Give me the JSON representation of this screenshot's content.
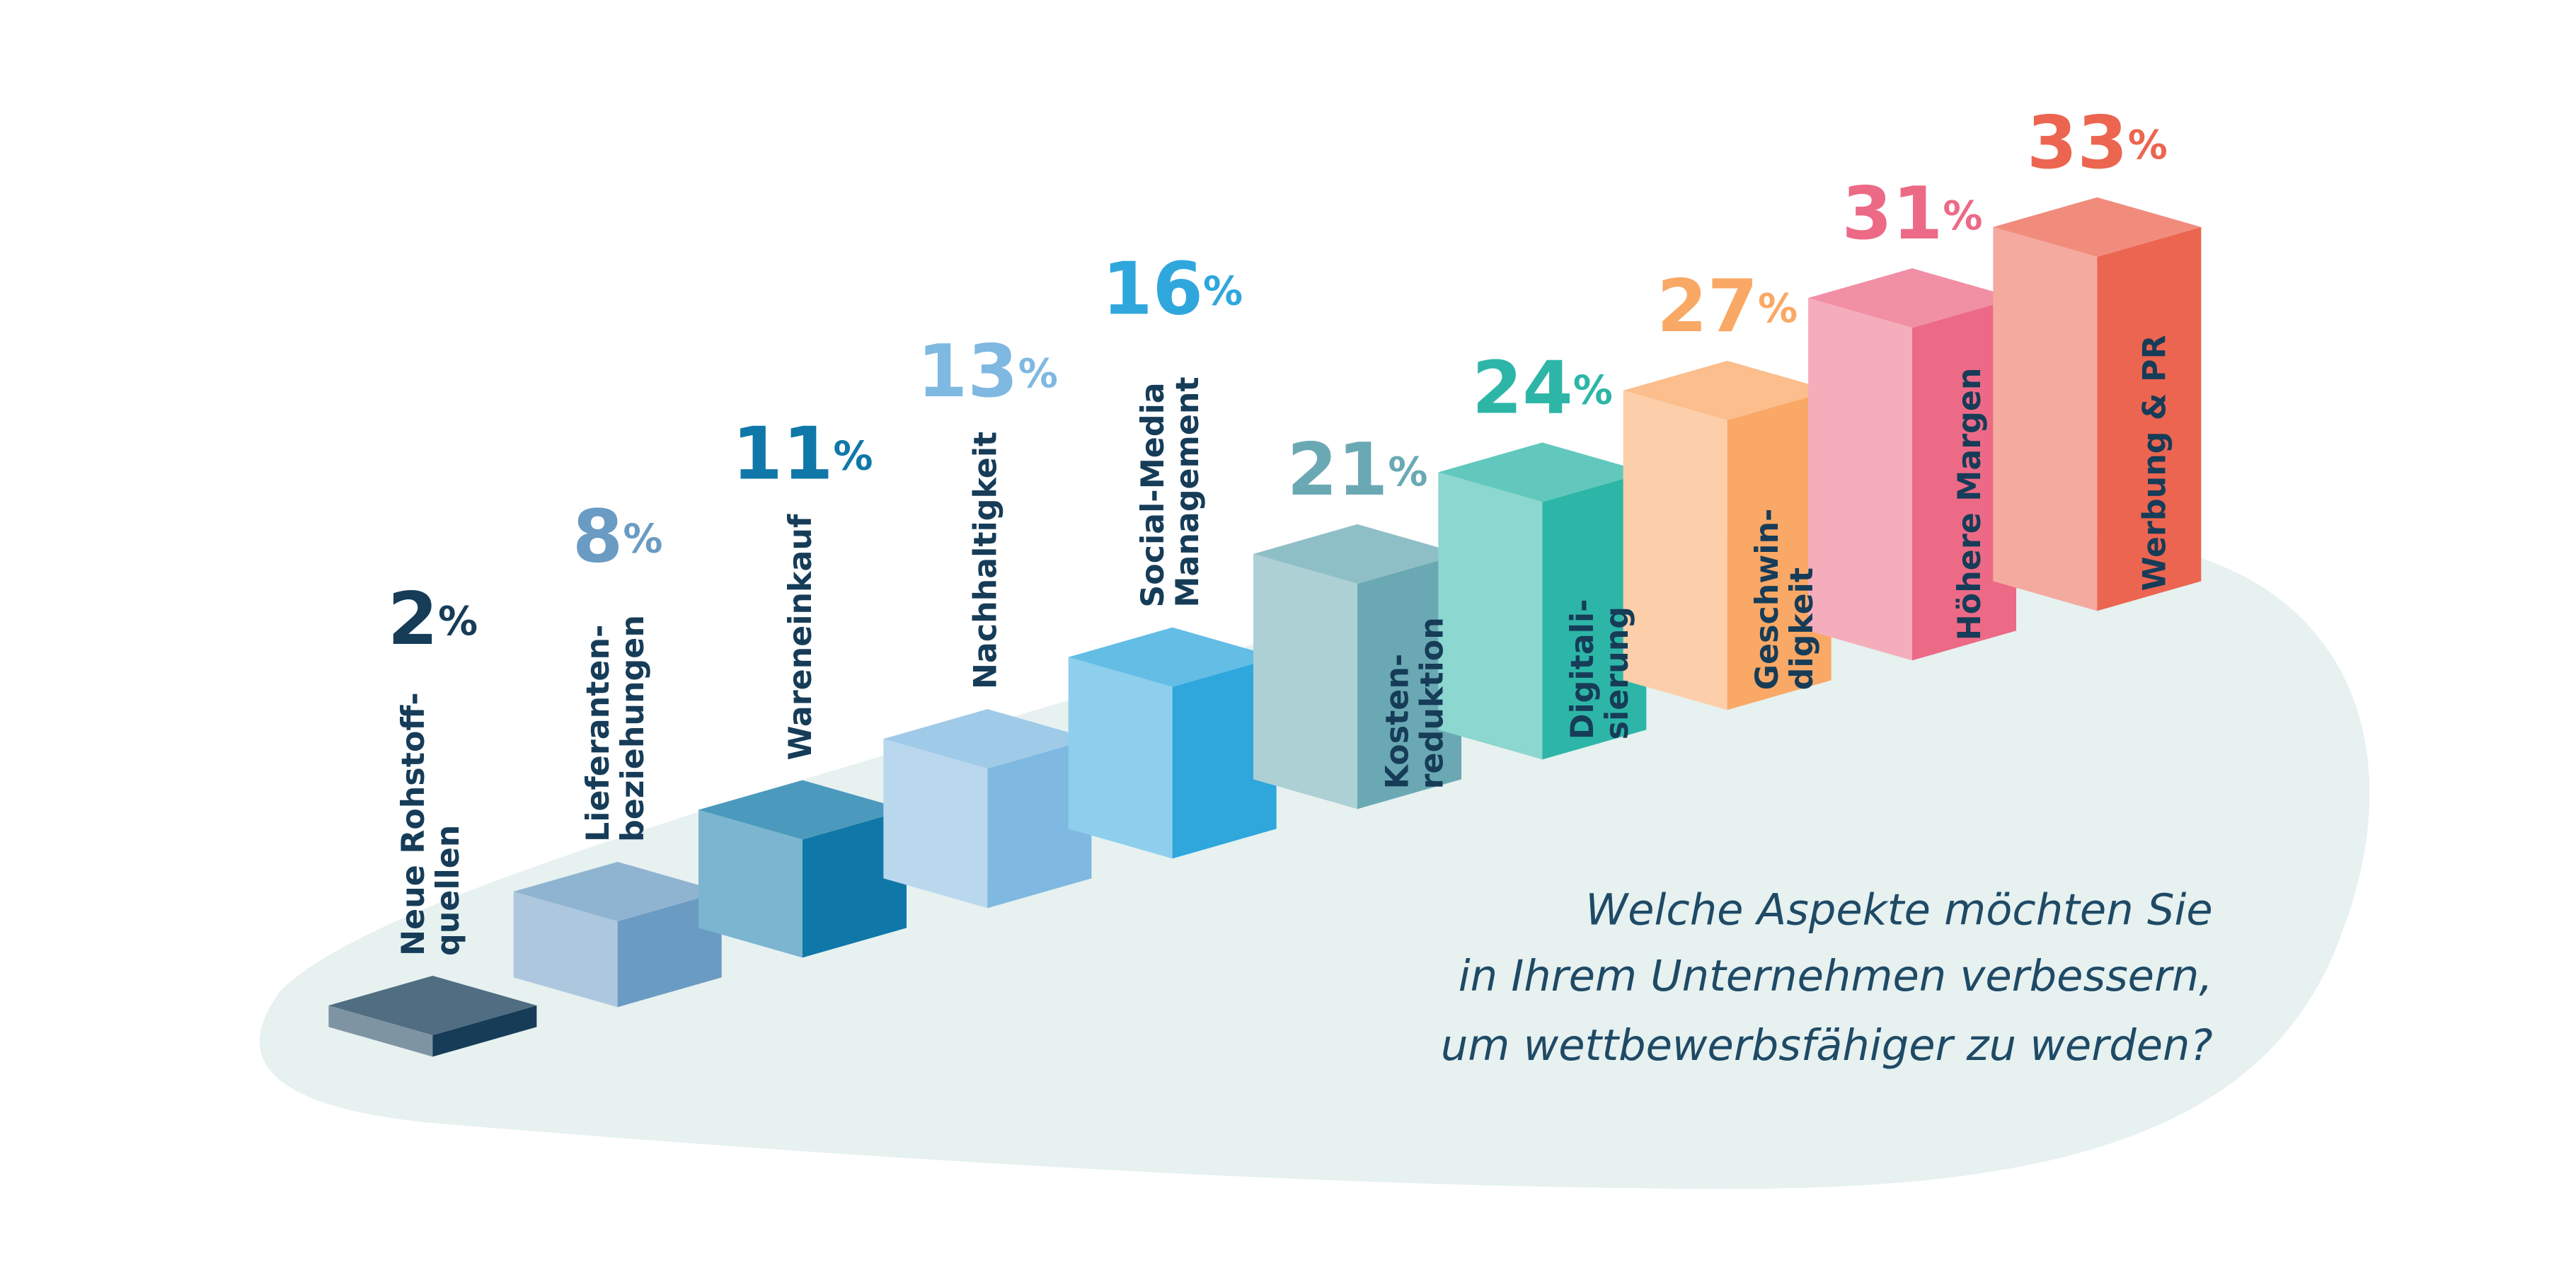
{
  "chart_data": {
    "type": "bar3d",
    "categories": [
      "Neue Rohstoff-\nquellen",
      "Lieferanten-\nbeziehungen",
      "Wareneinkauf",
      "Nachhaltigkeit",
      "Social-Media\nManagement",
      "Kosten-\nreduktion",
      "Digitali-\nsierung",
      "Geschwin-\ndigkeit",
      "Höhere Margen",
      "Werbung & PR"
    ],
    "values": [
      2,
      8,
      11,
      13,
      16,
      21,
      24,
      27,
      31,
      33
    ],
    "value_labels": [
      "2%",
      "8%",
      "11%",
      "13%",
      "16%",
      "21%",
      "24%",
      "27%",
      "31%",
      "33%"
    ],
    "colors": [
      "#163c58",
      "#6a9bc3",
      "#0f78a8",
      "#7fb8e0",
      "#2fa7dc",
      "#6aa9b3",
      "#2db6a7",
      "#f9a865",
      "#ec6a86",
      "#ec6550"
    ],
    "question": [
      "Welche Aspekte möchten Sie",
      "in Ihrem Unternehmen verbessern,",
      "um wettbewerbsfähiger zu werden?"
    ]
  }
}
